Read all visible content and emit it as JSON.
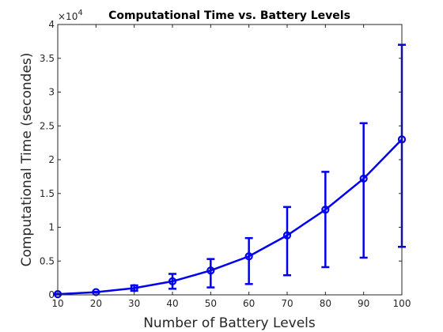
{
  "chart_data": {
    "type": "line",
    "title": "Computational Time vs. Battery Levels",
    "xlabel": "Number of Battery Levels",
    "ylabel": "Computational Time (secondes)",
    "y_multiplier_base": "×10",
    "y_multiplier_exp": "4",
    "xlim": [
      10,
      100
    ],
    "ylim": [
      0,
      4
    ],
    "x_ticks": [
      10,
      20,
      30,
      40,
      50,
      60,
      70,
      80,
      90,
      100
    ],
    "y_ticks": [
      0,
      0.5,
      1,
      1.5,
      2,
      2.5,
      3,
      3.5,
      4
    ],
    "y_tick_labels": [
      "0",
      "0.5",
      "1",
      "1.5",
      "2",
      "2.5",
      "3",
      "3.5",
      "4"
    ],
    "grid": false,
    "color": "#0000ee",
    "series": [
      {
        "x": [
          10,
          20,
          30,
          40,
          50,
          60,
          70,
          80,
          90,
          100
        ],
        "y": [
          0.01,
          0.04,
          0.1,
          0.2,
          0.36,
          0.57,
          0.88,
          1.26,
          1.72,
          2.3
        ],
        "y_low": [
          0.005,
          0.035,
          0.06,
          0.09,
          0.11,
          0.16,
          0.29,
          0.41,
          0.55,
          0.71
        ],
        "y_high": [
          0.015,
          0.045,
          0.14,
          0.31,
          0.53,
          0.84,
          1.3,
          1.82,
          2.54,
          3.7
        ]
      }
    ]
  }
}
